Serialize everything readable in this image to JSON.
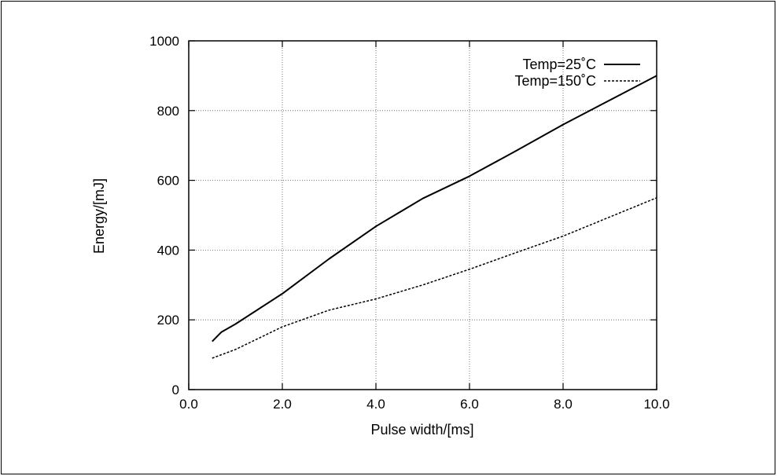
{
  "chart_data": {
    "type": "line",
    "xlabel": "Pulse width/[ms]",
    "ylabel": "Energy/[mJ]",
    "xlim": [
      0,
      10
    ],
    "ylim": [
      0,
      1000
    ],
    "x_ticks": [
      "0.0",
      "2.0",
      "4.0",
      "6.0",
      "8.0",
      "10.0"
    ],
    "y_ticks": [
      "0",
      "200",
      "400",
      "600",
      "800",
      "1000"
    ],
    "grid": true,
    "legend_position": "top-right",
    "series": [
      {
        "name": "Temp=25˚C",
        "style": "solid",
        "color": "#000000",
        "x": [
          0.5,
          0.7,
          1.0,
          2.0,
          3.0,
          4.0,
          5.0,
          6.0,
          7.0,
          8.0,
          9.0,
          10.0
        ],
        "y": [
          138,
          165,
          188,
          275,
          375,
          468,
          548,
          612,
          685,
          760,
          830,
          900
        ]
      },
      {
        "name": "Temp=150˚C",
        "style": "dashed",
        "color": "#000000",
        "x": [
          0.5,
          1.0,
          2.0,
          3.0,
          4.0,
          5.0,
          6.0,
          7.0,
          8.0,
          9.0,
          10.0
        ],
        "y": [
          90,
          115,
          180,
          228,
          260,
          300,
          345,
          393,
          440,
          495,
          550
        ]
      }
    ]
  }
}
